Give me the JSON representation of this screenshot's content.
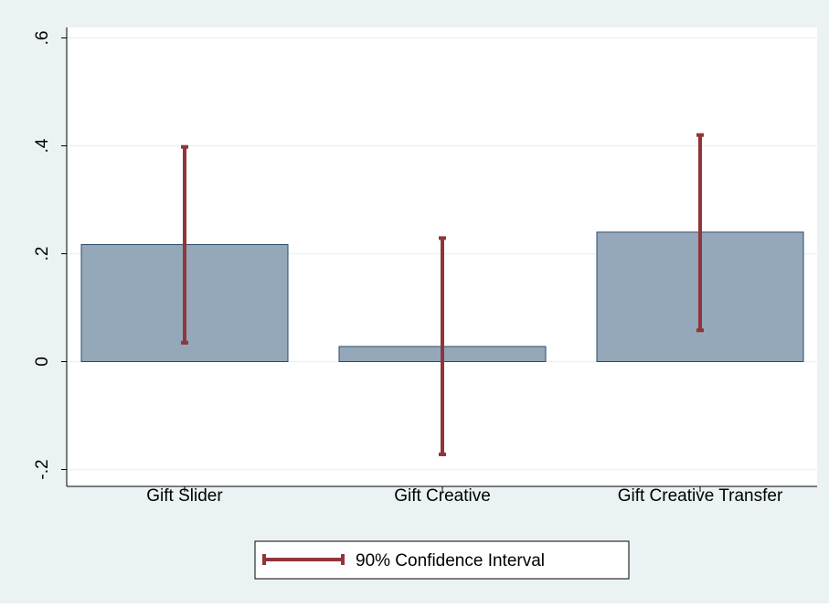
{
  "colors": {
    "outer_background": "#eaf2f3",
    "plot_background": "#ffffff",
    "bar_fill": "#95a8b9",
    "bar_stroke": "#2b4a6b",
    "ci_color": "#90353b",
    "grid_color": "#eaf2f3",
    "axis_color": "#000000"
  },
  "chart_data": {
    "type": "bar",
    "categories": [
      "Gift Slider",
      "Gift Creative",
      "Gift Creative Transfer"
    ],
    "values": [
      0.217,
      0.028,
      0.24
    ],
    "ci_low": [
      0.035,
      -0.172,
      0.058
    ],
    "ci_high": [
      0.398,
      0.229,
      0.42
    ],
    "ylim": [
      -0.2,
      0.6
    ],
    "yticks": [
      -0.2,
      0,
      0.2,
      0.4,
      0.6
    ],
    "ytick_labels": [
      "-.2",
      "0",
      ".2",
      ".4",
      ".6"
    ],
    "grid": true,
    "legend_label": "90% Confidence Interval",
    "legend_position": "bottom-center"
  }
}
